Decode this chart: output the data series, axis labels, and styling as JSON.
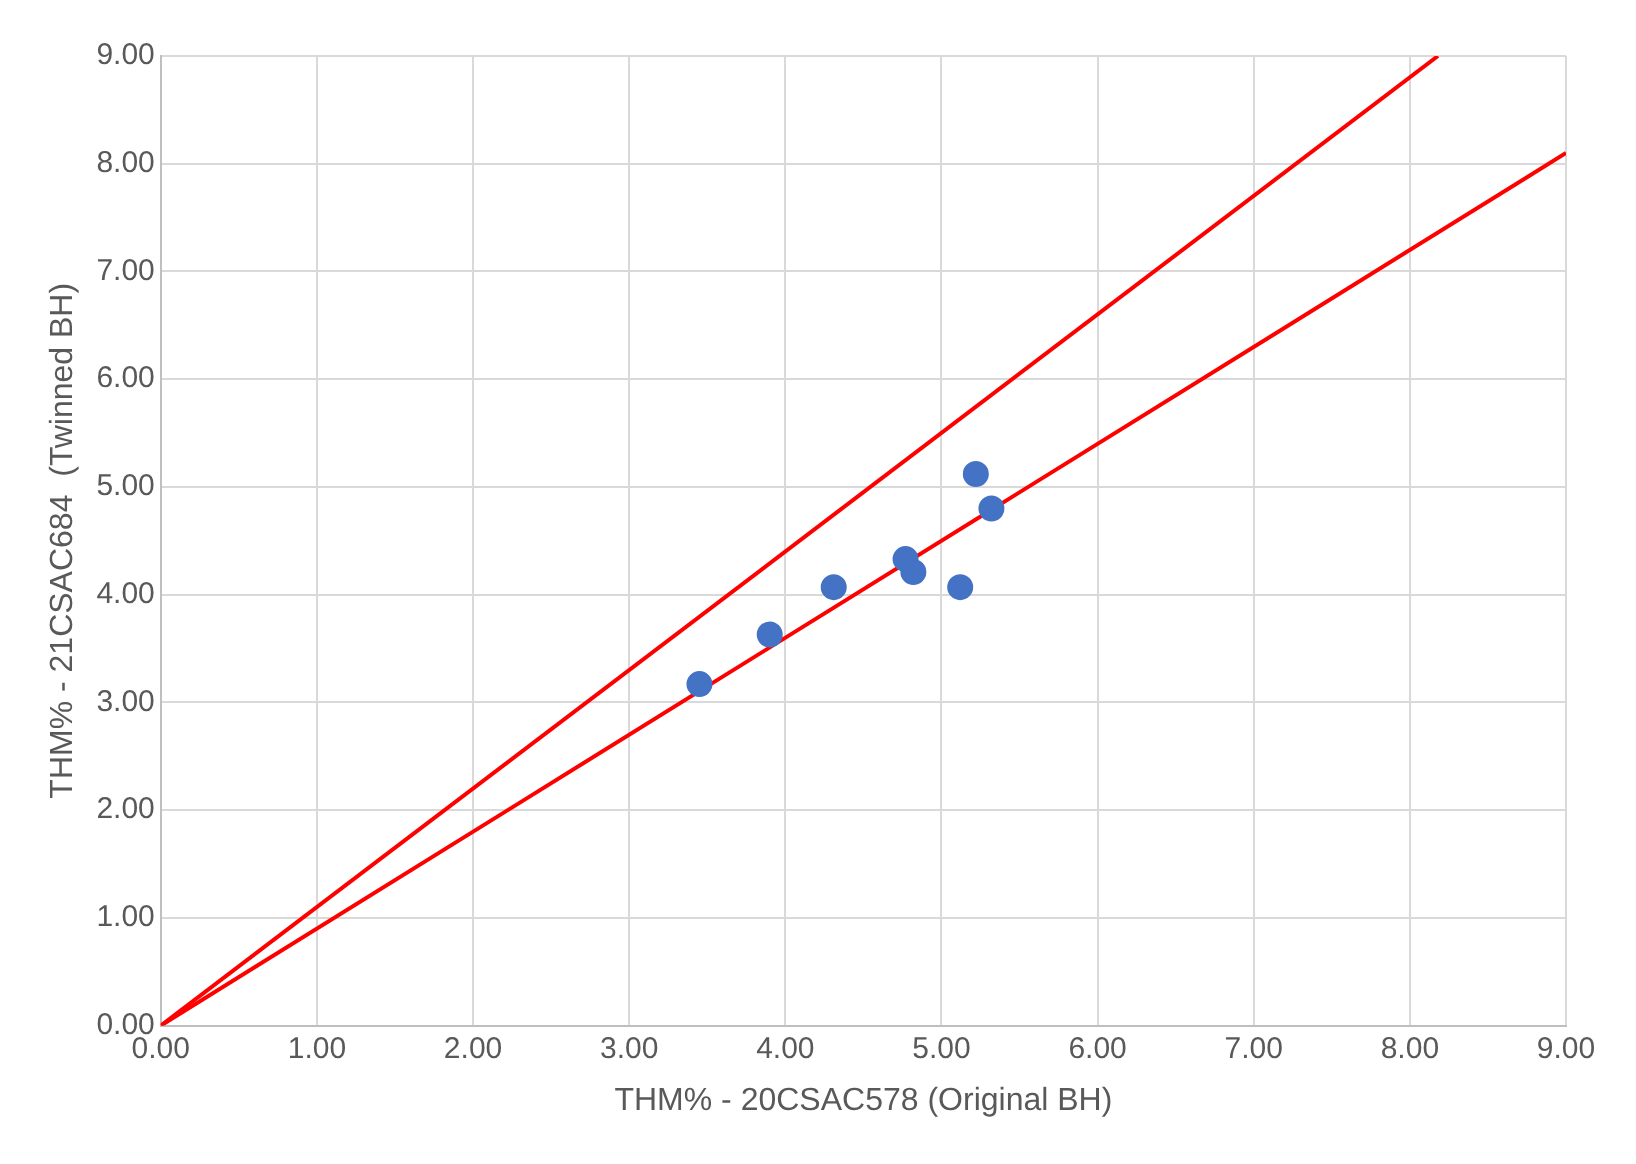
{
  "chart_data": {
    "type": "scatter",
    "xlabel": "THM% - 20CSAC578 (Original BH)",
    "ylabel": "THM% - 21CSAC684  (Twinned BH)",
    "series": [
      {
        "color": "#4472c4",
        "marker": "circle",
        "x": [
          3.45,
          3.9,
          4.31,
          4.77,
          4.82,
          5.12,
          5.22,
          5.32
        ],
        "values": [
          3.17,
          3.63,
          4.07,
          4.33,
          4.21,
          4.07,
          5.12,
          4.8
        ]
      },
      {
        "type": "line",
        "color": "#ff0000",
        "x": [
          0,
          8.18
        ],
        "values": [
          0,
          9
        ]
      },
      {
        "type": "line",
        "color": "#ff0000",
        "x": [
          0,
          9
        ],
        "values": [
          0,
          8.1
        ]
      }
    ],
    "xlim": [
      0,
      9
    ],
    "ylim": [
      0,
      9
    ],
    "xticks": [
      {
        "value": 0,
        "label": "0.00"
      },
      {
        "value": 1,
        "label": "1.00"
      },
      {
        "value": 2,
        "label": "2.00"
      },
      {
        "value": 3,
        "label": "3.00"
      },
      {
        "value": 4,
        "label": "4.00"
      },
      {
        "value": 5,
        "label": "5.00"
      },
      {
        "value": 6,
        "label": "6.00"
      },
      {
        "value": 7,
        "label": "7.00"
      },
      {
        "value": 8,
        "label": "8.00"
      },
      {
        "value": 9,
        "label": "9.00"
      }
    ],
    "yticks": [
      {
        "value": 0,
        "label": "0.00"
      },
      {
        "value": 1,
        "label": "1.00"
      },
      {
        "value": 2,
        "label": "2.00"
      },
      {
        "value": 3,
        "label": "3.00"
      },
      {
        "value": 4,
        "label": "4.00"
      },
      {
        "value": 5,
        "label": "5.00"
      },
      {
        "value": 6,
        "label": "6.00"
      },
      {
        "value": 7,
        "label": "7.00"
      },
      {
        "value": 8,
        "label": "8.00"
      },
      {
        "value": 9,
        "label": "9.00"
      }
    ],
    "grid": true,
    "legend": false
  }
}
